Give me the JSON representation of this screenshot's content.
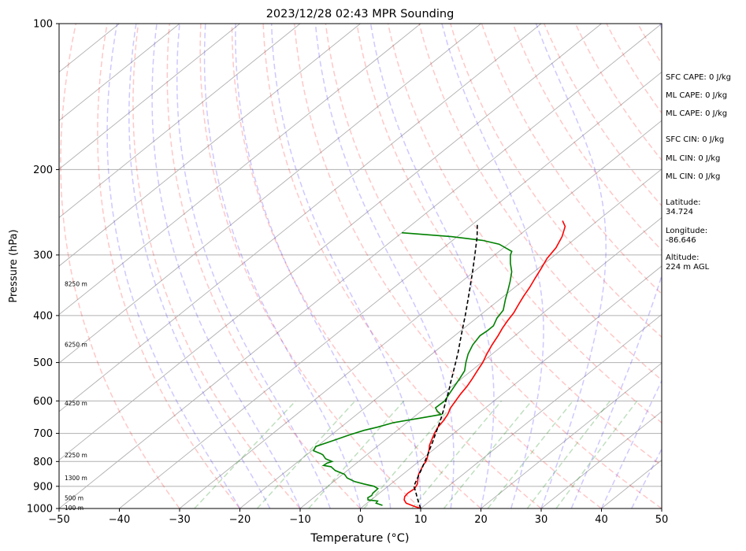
{
  "chart_data": {
    "type": "line",
    "title": "2023/12/28 02:43 MPR Sounding",
    "xlabel": "Temperature (°C)",
    "ylabel": "Pressure (hPa)",
    "xlim": [
      -50,
      50
    ],
    "ylim": [
      1000,
      100
    ],
    "y_scale": "log",
    "x_ticks": [
      "−50",
      "−40",
      "−30",
      "−20",
      "−10",
      "0",
      "10",
      "20",
      "30",
      "40",
      "50"
    ],
    "y_ticks": [
      "1000",
      "900",
      "800",
      "700",
      "600",
      "500",
      "400",
      "300",
      "200",
      "100"
    ],
    "grid": true,
    "skew": "skew-T log-P",
    "height_labels": [
      {
        "text": "100 m",
        "p": 1000
      },
      {
        "text": "500 m",
        "p": 955
      },
      {
        "text": "1300 m",
        "p": 868
      },
      {
        "text": "2250 m",
        "p": 778
      },
      {
        "text": "4250 m",
        "p": 608
      },
      {
        "text": "6250 m",
        "p": 460
      },
      {
        "text": "8250 m",
        "p": 345
      }
    ],
    "series": [
      {
        "color": "#ff0000",
        "points": [
          [
            1000,
            10.0
          ],
          [
            990,
            8.5
          ],
          [
            975,
            6.5
          ],
          [
            960,
            5.5
          ],
          [
            945,
            4.9
          ],
          [
            930,
            4.7
          ],
          [
            910,
            4.9
          ],
          [
            890,
            4.4
          ],
          [
            870,
            3.5
          ],
          [
            850,
            2.6
          ],
          [
            830,
            2.0
          ],
          [
            815,
            1.5
          ],
          [
            800,
            1.2
          ],
          [
            785,
            0.6
          ],
          [
            770,
            -0.1
          ],
          [
            755,
            -0.8
          ],
          [
            740,
            -1.6
          ],
          [
            720,
            -2.4
          ],
          [
            700,
            -3.2
          ],
          [
            680,
            -3.9
          ],
          [
            660,
            -4.3
          ],
          [
            640,
            -4.9
          ],
          [
            620,
            -5.8
          ],
          [
            600,
            -6.4
          ],
          [
            580,
            -7.0
          ],
          [
            560,
            -7.5
          ],
          [
            540,
            -8.2
          ],
          [
            520,
            -9.0
          ],
          [
            500,
            -9.8
          ],
          [
            480,
            -10.9
          ],
          [
            460,
            -11.9
          ],
          [
            440,
            -12.8
          ],
          [
            425,
            -13.6
          ],
          [
            410,
            -14.3
          ],
          [
            395,
            -14.9
          ],
          [
            380,
            -15.8
          ],
          [
            365,
            -16.7
          ],
          [
            350,
            -17.5
          ],
          [
            335,
            -18.5
          ],
          [
            320,
            -19.5
          ],
          [
            305,
            -20.6
          ],
          [
            290,
            -21.3
          ],
          [
            275,
            -22.6
          ],
          [
            262,
            -24.2
          ],
          [
            255,
            -25.8
          ]
        ]
      },
      {
        "color": "#008000",
        "points": [
          [
            985,
            3.0
          ],
          [
            975,
            1.5
          ],
          [
            965,
            1.3
          ],
          [
            960,
            -0.5
          ],
          [
            950,
            -1.0
          ],
          [
            940,
            -0.8
          ],
          [
            930,
            -1.1
          ],
          [
            910,
            -1.2
          ],
          [
            900,
            -2.3
          ],
          [
            890,
            -4.5
          ],
          [
            880,
            -6.5
          ],
          [
            865,
            -8.5
          ],
          [
            850,
            -9.7
          ],
          [
            835,
            -12.0
          ],
          [
            820,
            -13.5
          ],
          [
            815,
            -15.0
          ],
          [
            806,
            -14.9
          ],
          [
            800,
            -14.4
          ],
          [
            790,
            -16.0
          ],
          [
            775,
            -17.3
          ],
          [
            770,
            -18.0
          ],
          [
            760,
            -19.7
          ],
          [
            745,
            -20.2
          ],
          [
            725,
            -18.6
          ],
          [
            705,
            -17.0
          ],
          [
            690,
            -15.5
          ],
          [
            680,
            -14.0
          ],
          [
            665,
            -12.2
          ],
          [
            650,
            -8.5
          ],
          [
            640,
            -6.0
          ],
          [
            630,
            -7.3
          ],
          [
            620,
            -8.3
          ],
          [
            600,
            -8.2
          ],
          [
            580,
            -8.9
          ],
          [
            560,
            -9.6
          ],
          [
            540,
            -10.3
          ],
          [
            520,
            -11.1
          ],
          [
            500,
            -12.6
          ],
          [
            480,
            -14.0
          ],
          [
            460,
            -15.1
          ],
          [
            440,
            -15.8
          ],
          [
            430,
            -15.6
          ],
          [
            420,
            -15.6
          ],
          [
            405,
            -16.6
          ],
          [
            390,
            -17.2
          ],
          [
            370,
            -19.1
          ],
          [
            355,
            -20.5
          ],
          [
            340,
            -22.0
          ],
          [
            325,
            -23.7
          ],
          [
            312,
            -25.7
          ],
          [
            300,
            -27.4
          ],
          [
            295,
            -27.9
          ],
          [
            285,
            -31.5
          ],
          [
            280,
            -35.0
          ],
          [
            275,
            -41.0
          ],
          [
            270,
            -50.0
          ]
        ]
      },
      {
        "color": "#000000",
        "style": "dashed",
        "points": [
          [
            1000,
            10.0
          ],
          [
            975,
            8.6
          ],
          [
            950,
            7.2
          ],
          [
            925,
            5.8
          ],
          [
            900,
            4.3
          ],
          [
            875,
            3.5
          ],
          [
            850,
            2.7
          ],
          [
            825,
            1.9
          ],
          [
            800,
            1.0
          ],
          [
            775,
            0.1
          ],
          [
            750,
            -0.9
          ],
          [
            725,
            -1.9
          ],
          [
            700,
            -3.0
          ],
          [
            675,
            -4.1
          ],
          [
            650,
            -5.3
          ],
          [
            625,
            -6.6
          ],
          [
            600,
            -8.0
          ],
          [
            575,
            -9.4
          ],
          [
            550,
            -11.0
          ],
          [
            525,
            -12.6
          ],
          [
            500,
            -14.3
          ],
          [
            475,
            -16.1
          ],
          [
            450,
            -18.1
          ],
          [
            425,
            -20.2
          ],
          [
            400,
            -22.4
          ],
          [
            375,
            -24.8
          ],
          [
            350,
            -27.4
          ],
          [
            325,
            -30.2
          ],
          [
            300,
            -33.3
          ],
          [
            275,
            -36.7
          ],
          [
            260,
            -39.1
          ]
        ]
      }
    ]
  },
  "side_panel": {
    "sfc_cape": "SFC CAPE: 0 J/kg",
    "ml_cape_1": "ML CAPE: 0 J/kg",
    "ml_cape_2": "ML CAPE: 0 J/kg",
    "sfc_cin": "SFC CIN: 0 J/kg",
    "ml_cin_1": "ML CIN: 0 J/kg",
    "ml_cin_2": "ML CIN: 0 J/kg",
    "latitude_label": "Latitude:",
    "latitude_value": "34.724",
    "longitude_label": "Longitude:",
    "longitude_value": "-86.646",
    "altitude_label": "Altitude:",
    "altitude_value": "224 m AGL"
  }
}
